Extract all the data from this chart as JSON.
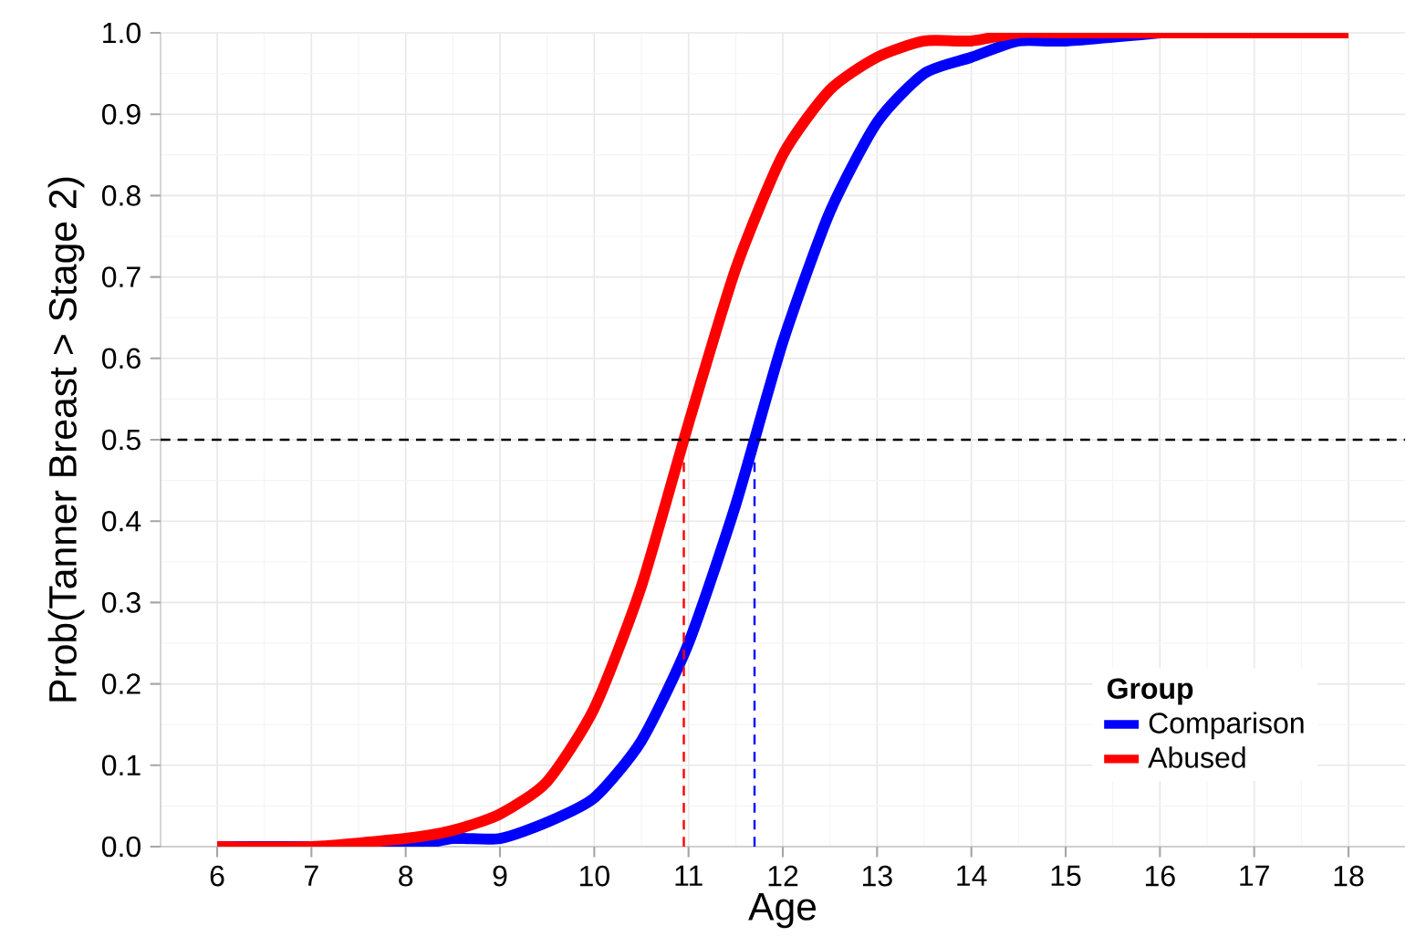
{
  "chart_data": {
    "type": "line",
    "xlabel": "Age",
    "ylabel": "Prob(Tanner Breast > Stage 2)",
    "legend_title": "Group",
    "x": [
      6,
      7,
      8,
      8.5,
      9,
      9.5,
      10,
      10.5,
      11,
      11.5,
      12,
      12.5,
      13,
      13.5,
      14,
      14.5,
      15,
      16,
      17,
      18
    ],
    "series": [
      {
        "name": "Comparison",
        "color": "#0000ff",
        "values": [
          0.0,
          0.0,
          0.0,
          0.01,
          0.01,
          0.03,
          0.06,
          0.13,
          0.25,
          0.42,
          0.62,
          0.78,
          0.89,
          0.95,
          0.97,
          0.99,
          0.99,
          1.0,
          null,
          null
        ]
      },
      {
        "name": "Abused",
        "color": "#ff0000",
        "values": [
          0.0,
          0.0,
          0.01,
          0.02,
          0.04,
          0.08,
          0.17,
          0.32,
          0.52,
          0.71,
          0.85,
          0.93,
          0.97,
          0.99,
          0.99,
          1.0,
          1.0,
          1.0,
          1.0,
          1.0
        ]
      }
    ],
    "xlim": [
      5.4,
      18.6
    ],
    "ylim": [
      0,
      1
    ],
    "xticks": [
      6,
      7,
      8,
      9,
      10,
      11,
      12,
      13,
      14,
      15,
      16,
      17,
      18
    ],
    "yticks": [
      {
        "value": 0,
        "label": "0.0"
      },
      0.1,
      0.2,
      0.3,
      0.4,
      0.5,
      0.6,
      0.7,
      0.8,
      0.9,
      {
        "value": 1,
        "label": "1.0"
      }
    ],
    "ref_lines": [
      {
        "axis": "y",
        "value": 0.5,
        "color": "#000000",
        "line_style": "dashed"
      },
      {
        "axis": "x",
        "value": 10.95,
        "color": "#ff0000",
        "line_style": "dashed"
      },
      {
        "axis": "x",
        "value": 11.7,
        "color": "#0000ff",
        "line_style": "dashed"
      }
    ],
    "grid": true,
    "legend": "bottom right",
    "marker": "none",
    "line_style": "solid"
  }
}
